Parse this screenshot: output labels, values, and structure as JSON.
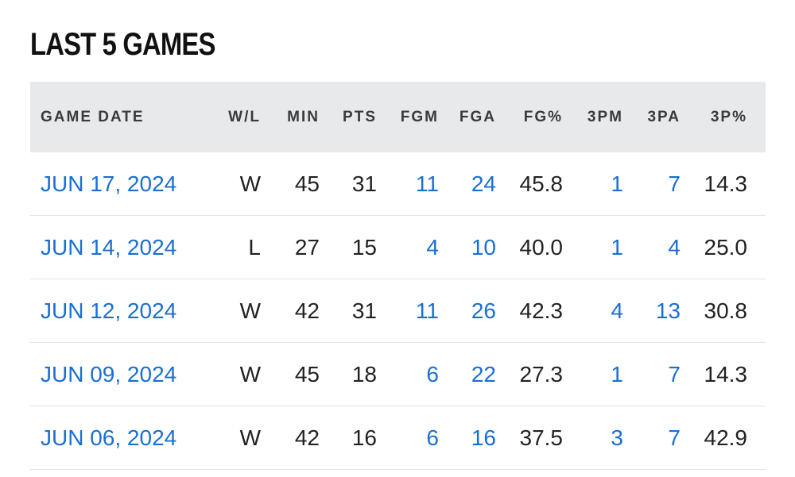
{
  "title": "LAST 5 GAMES",
  "colors": {
    "link": "#1a6fd1",
    "header_bg": "#e8e9eb",
    "text": "#222222"
  },
  "columns": [
    "GAME DATE",
    "W/L",
    "MIN",
    "PTS",
    "FGM",
    "FGA",
    "FG%",
    "3PM",
    "3PA",
    "3P%"
  ],
  "rows": [
    {
      "date": "JUN 17, 2024",
      "wl": "W",
      "min": "45",
      "pts": "31",
      "fgm": "11",
      "fga": "24",
      "fgp": "45.8",
      "tpm": "1",
      "tpa": "7",
      "tpp": "14.3"
    },
    {
      "date": "JUN 14, 2024",
      "wl": "L",
      "min": "27",
      "pts": "15",
      "fgm": "4",
      "fga": "10",
      "fgp": "40.0",
      "tpm": "1",
      "tpa": "4",
      "tpp": "25.0"
    },
    {
      "date": "JUN 12, 2024",
      "wl": "W",
      "min": "42",
      "pts": "31",
      "fgm": "11",
      "fga": "26",
      "fgp": "42.3",
      "tpm": "4",
      "tpa": "13",
      "tpp": "30.8"
    },
    {
      "date": "JUN 09, 2024",
      "wl": "W",
      "min": "45",
      "pts": "18",
      "fgm": "6",
      "fga": "22",
      "fgp": "27.3",
      "tpm": "1",
      "tpa": "7",
      "tpp": "14.3"
    },
    {
      "date": "JUN 06, 2024",
      "wl": "W",
      "min": "42",
      "pts": "16",
      "fgm": "6",
      "fga": "16",
      "fgp": "37.5",
      "tpm": "3",
      "tpa": "7",
      "tpp": "42.9"
    }
  ]
}
